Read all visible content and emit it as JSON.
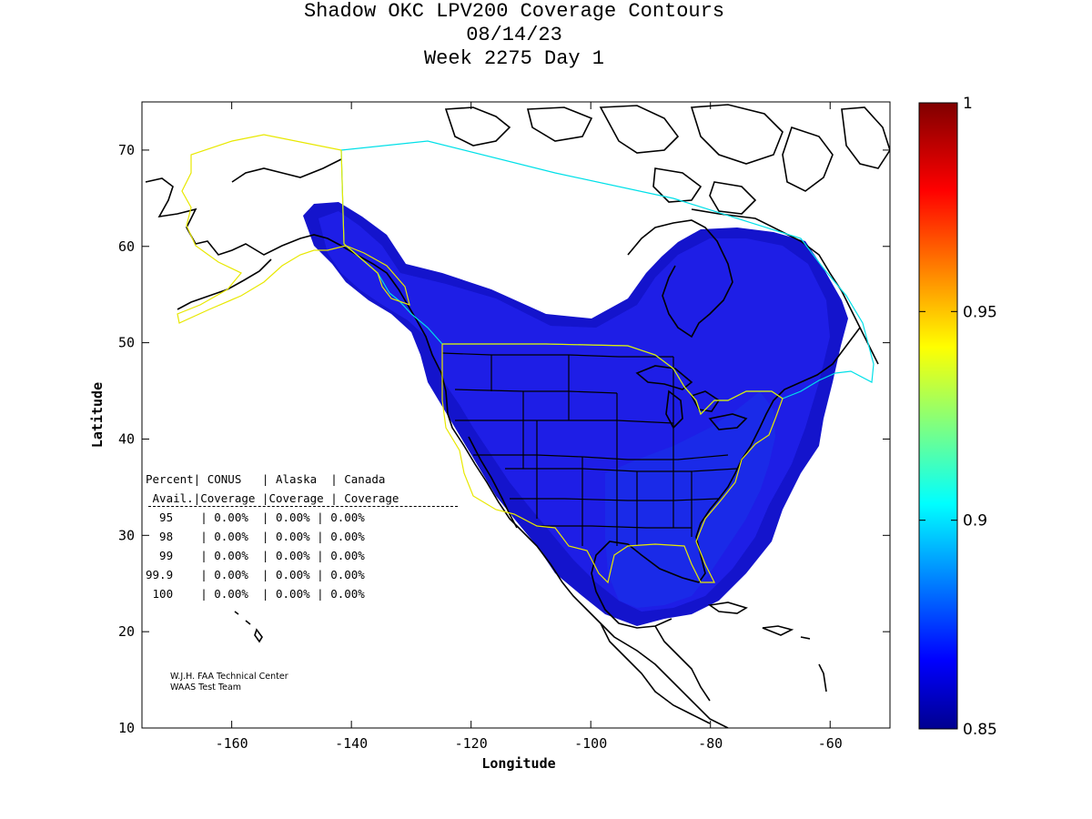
{
  "title": {
    "line1": "Shadow OKC LPV200 Coverage Contours",
    "line2": "08/14/23",
    "line3": "Week 2275 Day 1"
  },
  "axes": {
    "xlabel": "Longitude",
    "ylabel": "Latitude",
    "xlim": [
      -175,
      -50
    ],
    "ylim": [
      10,
      75
    ],
    "xticks": [
      -160,
      -140,
      -120,
      -100,
      -80,
      -60
    ],
    "yticks": [
      10,
      20,
      30,
      40,
      50,
      60,
      70
    ]
  },
  "colorbar": {
    "min": 0.85,
    "max": 1,
    "ticks": [
      "0.85",
      "0.9",
      "0.95",
      "1"
    ],
    "tick_values": [
      0.85,
      0.9,
      0.95,
      1.0
    ],
    "colormap": "jet"
  },
  "colors": {
    "coverage_fill": "#1e1ee6",
    "coverage_fill_dark": "#1414cc",
    "coverage_core": "#1a2ae8",
    "alaska_boundary": "#e8e800",
    "conus_boundary": "#e8e800",
    "canada_boundary": "#00e0e8",
    "coastline": "#000000"
  },
  "table": {
    "header1": "Percent| CONUS   | Alaska  | Canada",
    "header2": " Avail.|Coverage |Coverage | Coverage",
    "rows": [
      {
        "avail": "95",
        "line": "  95    | 0.00%  | 0.00% | 0.00%"
      },
      {
        "avail": "98",
        "line": "  98    | 0.00%  | 0.00% | 0.00%"
      },
      {
        "avail": "99",
        "line": "  99    | 0.00%  | 0.00% | 0.00%"
      },
      {
        "avail": "99.9",
        "line": "99.9    | 0.00%  | 0.00% | 0.00%"
      },
      {
        "avail": "100",
        "line": " 100    | 0.00%  | 0.00% | 0.00%"
      }
    ]
  },
  "credit": {
    "line1": "W.J.H. FAA Technical Center",
    "line2": "WAAS Test Team"
  }
}
